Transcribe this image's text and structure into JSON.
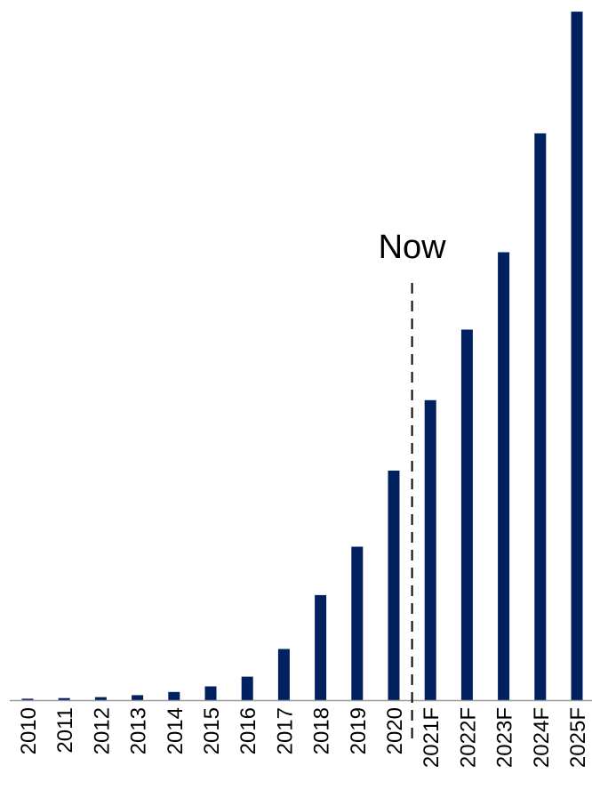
{
  "chart_data": {
    "type": "bar",
    "title": "",
    "xlabel": "",
    "ylabel": "",
    "categories": [
      "2010",
      "2011",
      "2012",
      "2013",
      "2014",
      "2015",
      "2016",
      "2017",
      "2018",
      "2019",
      "2020",
      "2021F",
      "2022F",
      "2023F",
      "2024F",
      "2025F"
    ],
    "values": [
      1,
      1.5,
      2.2,
      3.6,
      5.9,
      10,
      17,
      37,
      76,
      111,
      166,
      217,
      268,
      324,
      410,
      498
    ],
    "ylim": [
      0,
      500
    ],
    "y_axis_shown": false,
    "grid": false,
    "legend": "none",
    "bar_color": "#002060",
    "axis_color": "#999999",
    "annotations": [
      {
        "label": "Now",
        "between": [
          "2020",
          "2021F"
        ],
        "style": "dashed-vertical-line",
        "color": "#000000"
      }
    ]
  }
}
